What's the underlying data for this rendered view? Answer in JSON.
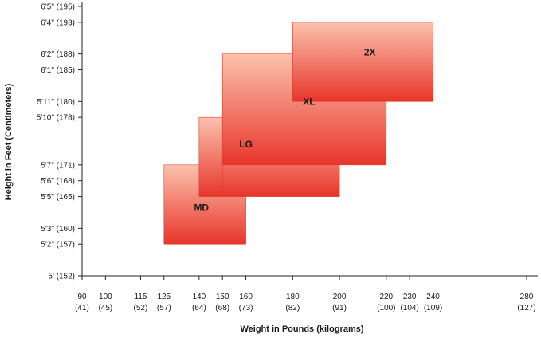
{
  "chart_data": {
    "type": "range-rectangles",
    "title": "",
    "xlabel": "Weight in Pounds (kilograms)",
    "ylabel": "Height in Feet (Centimeters)",
    "x_unit": "pounds",
    "y_unit": "inches",
    "xlim": [
      90,
      280
    ],
    "ylim": [
      60,
      77
    ],
    "grid": false,
    "x_ticks": [
      {
        "value": 90,
        "label": "90",
        "sublabel": "(41)"
      },
      {
        "value": 100,
        "label": "100",
        "sublabel": "(45)"
      },
      {
        "value": 115,
        "label": "115",
        "sublabel": "(52)"
      },
      {
        "value": 125,
        "label": "125",
        "sublabel": "(57)"
      },
      {
        "value": 140,
        "label": "140",
        "sublabel": "(64)"
      },
      {
        "value": 150,
        "label": "150",
        "sublabel": "(68)"
      },
      {
        "value": 160,
        "label": "160",
        "sublabel": "(73)"
      },
      {
        "value": 180,
        "label": "180",
        "sublabel": "(82)"
      },
      {
        "value": 200,
        "label": "200",
        "sublabel": "(91)"
      },
      {
        "value": 220,
        "label": "220",
        "sublabel": "(100)"
      },
      {
        "value": 230,
        "label": "230",
        "sublabel": "(104)"
      },
      {
        "value": 240,
        "label": "240",
        "sublabel": "(109)"
      },
      {
        "value": 280,
        "label": "280",
        "sublabel": "(127)"
      }
    ],
    "y_ticks": [
      {
        "value": 77,
        "label": "6'5\" (195)"
      },
      {
        "value": 76,
        "label": "6'4\" (193)"
      },
      {
        "value": 74,
        "label": "6'2\" (188)"
      },
      {
        "value": 73,
        "label": "6'1\" (185)"
      },
      {
        "value": 71,
        "label": "5'11\" (180)"
      },
      {
        "value": 70,
        "label": "5'10\" (178)"
      },
      {
        "value": 67,
        "label": "5'7\" (171)"
      },
      {
        "value": 66,
        "label": "5'6\" (168)"
      },
      {
        "value": 65,
        "label": "5'5\" (165)"
      },
      {
        "value": 63,
        "label": "5'3\" (160)"
      },
      {
        "value": 62,
        "label": "5'2\" (157)"
      },
      {
        "value": 60,
        "label": "5' (152)"
      }
    ],
    "sizes": [
      {
        "label": "MD",
        "weight_min": 125,
        "weight_max": 160,
        "height_min": 62,
        "height_max": 67
      },
      {
        "label": "LG",
        "weight_min": 140,
        "weight_max": 160,
        "height_min": 65,
        "height_max": 70
      },
      {
        "label": "LG",
        "weight_min": 150,
        "weight_max": 200,
        "height_min": 65,
        "height_max": 70
      },
      {
        "label": "XL",
        "weight_min": 150,
        "weight_max": 220,
        "height_min": 67,
        "height_max": 74
      },
      {
        "label": "2X",
        "weight_min": 180,
        "weight_max": 240,
        "height_min": 71,
        "height_max": 76
      }
    ],
    "colors": {
      "fill_top": "#fbc2ae",
      "fill_bottom": "#e8352a",
      "stroke": "#e0412f",
      "axis": "#222222"
    }
  }
}
